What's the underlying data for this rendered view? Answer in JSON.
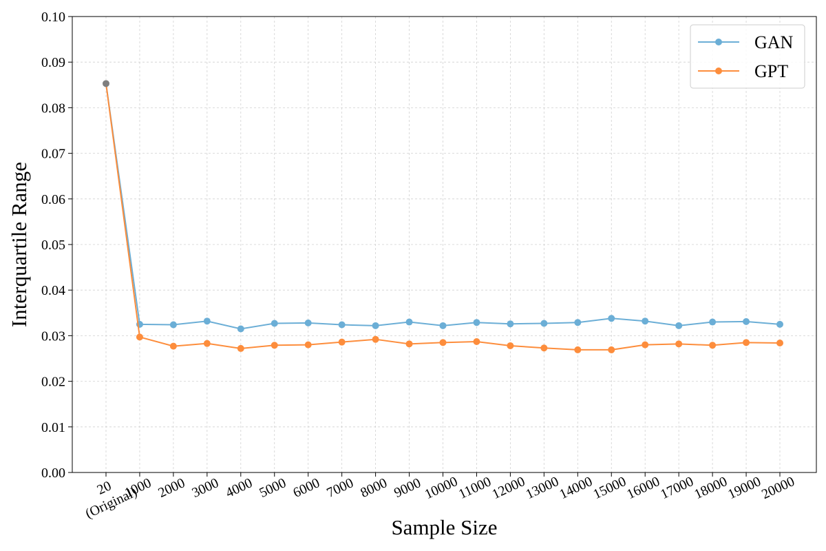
{
  "chart_data": {
    "type": "line",
    "xlabel": "Sample Size",
    "ylabel": "Interquartile Range",
    "categories": [
      [
        "20",
        "(Original)"
      ],
      [
        "1000"
      ],
      [
        "2000"
      ],
      [
        "3000"
      ],
      [
        "4000"
      ],
      [
        "5000"
      ],
      [
        "6000"
      ],
      [
        "7000"
      ],
      [
        "8000"
      ],
      [
        "9000"
      ],
      [
        "10000"
      ],
      [
        "11000"
      ],
      [
        "12000"
      ],
      [
        "13000"
      ],
      [
        "14000"
      ],
      [
        "15000"
      ],
      [
        "16000"
      ],
      [
        "17000"
      ],
      [
        "18000"
      ],
      [
        "19000"
      ],
      [
        "20000"
      ]
    ],
    "ylim": [
      0,
      0.1
    ],
    "yticks": [
      "0.00",
      "0.01",
      "0.02",
      "0.03",
      "0.04",
      "0.05",
      "0.06",
      "0.07",
      "0.08",
      "0.09",
      "0.10"
    ],
    "grid": true,
    "legend_position": "top-right",
    "original_point": {
      "value": 0.0853,
      "color": "#7f7f7f"
    },
    "series": [
      {
        "name": "GAN",
        "color": "#6baed6",
        "values": [
          0.0853,
          0.0325,
          0.0324,
          0.0332,
          0.0315,
          0.0327,
          0.0328,
          0.0324,
          0.0322,
          0.033,
          0.0322,
          0.0329,
          0.0326,
          0.0327,
          0.0329,
          0.0338,
          0.0332,
          0.0322,
          0.033,
          0.0331,
          0.0325
        ]
      },
      {
        "name": "GPT",
        "color": "#fd8d3c",
        "values": [
          0.0853,
          0.0297,
          0.0277,
          0.0283,
          0.0272,
          0.0279,
          0.028,
          0.0286,
          0.0292,
          0.0282,
          0.0285,
          0.0287,
          0.0278,
          0.0273,
          0.0269,
          0.0269,
          0.028,
          0.0282,
          0.0279,
          0.0285,
          0.0284
        ]
      }
    ]
  }
}
